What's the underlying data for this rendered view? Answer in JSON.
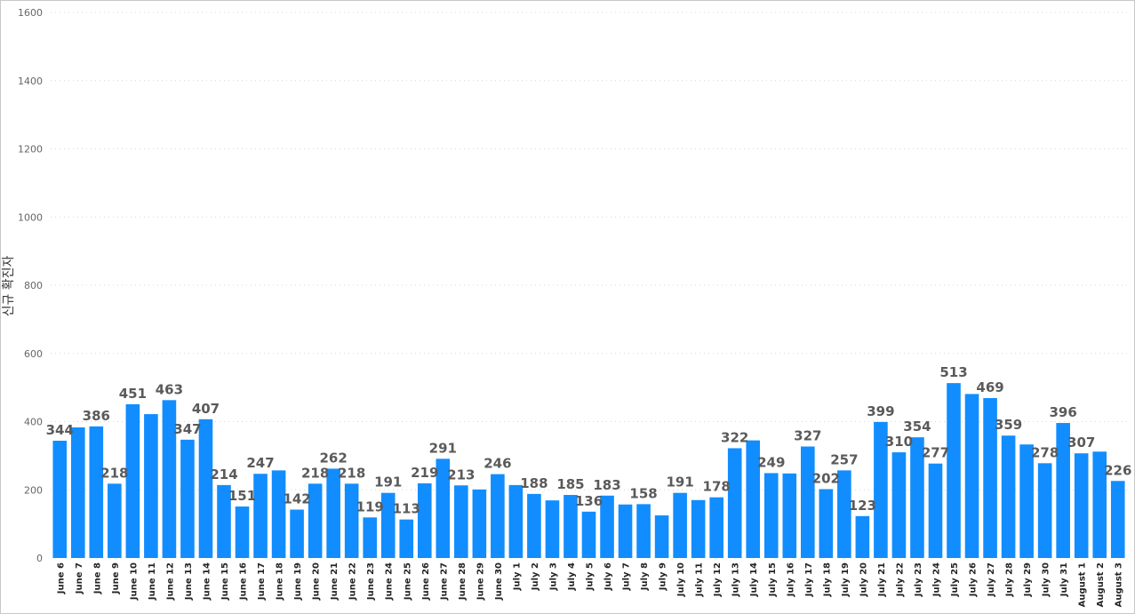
{
  "chart_data": {
    "type": "bar",
    "ylabel": "신규 확진자",
    "xlabel": "",
    "ylim": [
      0,
      1600
    ],
    "yticks": [
      0,
      200,
      400,
      600,
      800,
      1000,
      1200,
      1400,
      1600
    ],
    "grid": true,
    "bar_color": "#118dff",
    "categories": [
      "June 6",
      "June 7",
      "June 8",
      "June 9",
      "June 10",
      "June 11",
      "June 12",
      "June 13",
      "June 14",
      "June 15",
      "June 16",
      "June 17",
      "June 18",
      "June 19",
      "June 20",
      "June 21",
      "June 22",
      "June 23",
      "June 24",
      "June 25",
      "June 26",
      "June 27",
      "June 28",
      "June 29",
      "June 30",
      "July 1",
      "July 2",
      "July 3",
      "July 4",
      "July 5",
      "July 6",
      "July 7",
      "July 8",
      "July 9",
      "July 10",
      "July 11",
      "July 12",
      "July 13",
      "July 14",
      "July 15",
      "July 16",
      "July 17",
      "July 18",
      "July 19",
      "July 20",
      "July 21",
      "July 22",
      "July 23",
      "July 24",
      "July 25",
      "July 26",
      "July 27",
      "July 28",
      "July 29",
      "July 30",
      "July 31",
      "August 1",
      "August 2",
      "August 3"
    ],
    "values": [
      344,
      383,
      386,
      218,
      451,
      422,
      463,
      347,
      407,
      214,
      151,
      247,
      257,
      142,
      218,
      262,
      218,
      119,
      191,
      113,
      219,
      291,
      213,
      201,
      246,
      214,
      188,
      169,
      185,
      136,
      183,
      157,
      158,
      125,
      191,
      170,
      178,
      322,
      345,
      249,
      248,
      327,
      202,
      257,
      123,
      399,
      310,
      354,
      277,
      513,
      481,
      469,
      359,
      333,
      278,
      396,
      307,
      312,
      226
    ],
    "labeled": [
      true,
      false,
      true,
      true,
      true,
      false,
      true,
      true,
      true,
      true,
      true,
      true,
      false,
      true,
      true,
      true,
      true,
      true,
      true,
      true,
      true,
      true,
      true,
      false,
      true,
      false,
      true,
      false,
      true,
      true,
      true,
      false,
      true,
      false,
      true,
      false,
      true,
      true,
      false,
      true,
      false,
      true,
      true,
      true,
      true,
      true,
      true,
      true,
      true,
      true,
      false,
      true,
      true,
      false,
      true,
      true,
      true,
      false,
      true
    ]
  }
}
